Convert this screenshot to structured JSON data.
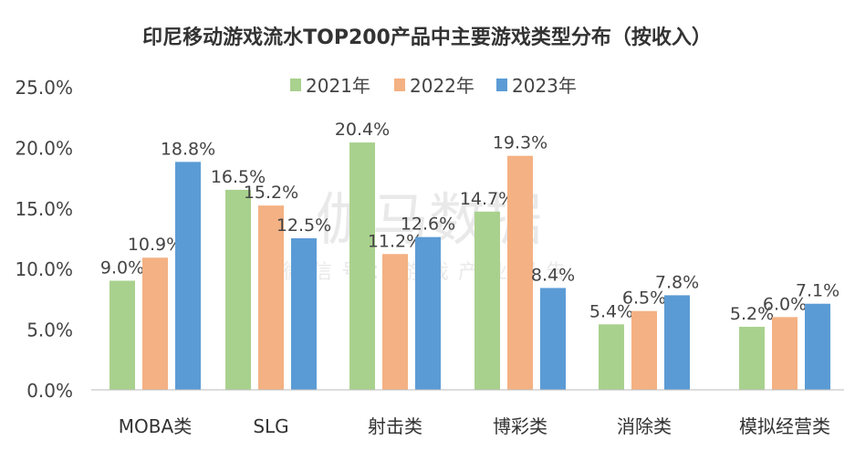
{
  "chart_data": {
    "type": "bar",
    "title": "印尼移动游戏流水TOP200产品中主要游戏类型分布（按收入）",
    "categories": [
      "MOBA类",
      "SLG",
      "射击类",
      "博彩类",
      "消除类",
      "模拟经营类"
    ],
    "series": [
      {
        "name": "2021年",
        "color": "#a9d18e",
        "values": [
          9.0,
          16.5,
          20.4,
          14.7,
          5.4,
          5.2
        ]
      },
      {
        "name": "2022年",
        "color": "#f4b183",
        "values": [
          10.9,
          15.2,
          11.2,
          19.3,
          6.5,
          6.0
        ]
      },
      {
        "name": "2023年",
        "color": "#5b9bd5",
        "values": [
          18.8,
          12.5,
          12.6,
          8.4,
          7.8,
          7.1
        ]
      }
    ],
    "unit": "%",
    "ylim": [
      0,
      25
    ],
    "yticks": [
      "0.0%",
      "5.0%",
      "10.0%",
      "15.0%",
      "20.0%",
      "25.0%"
    ],
    "grid": false,
    "legend": "top"
  },
  "watermark": {
    "main": "伽马数据",
    "sub": "微信号：游戏产业报告"
  }
}
